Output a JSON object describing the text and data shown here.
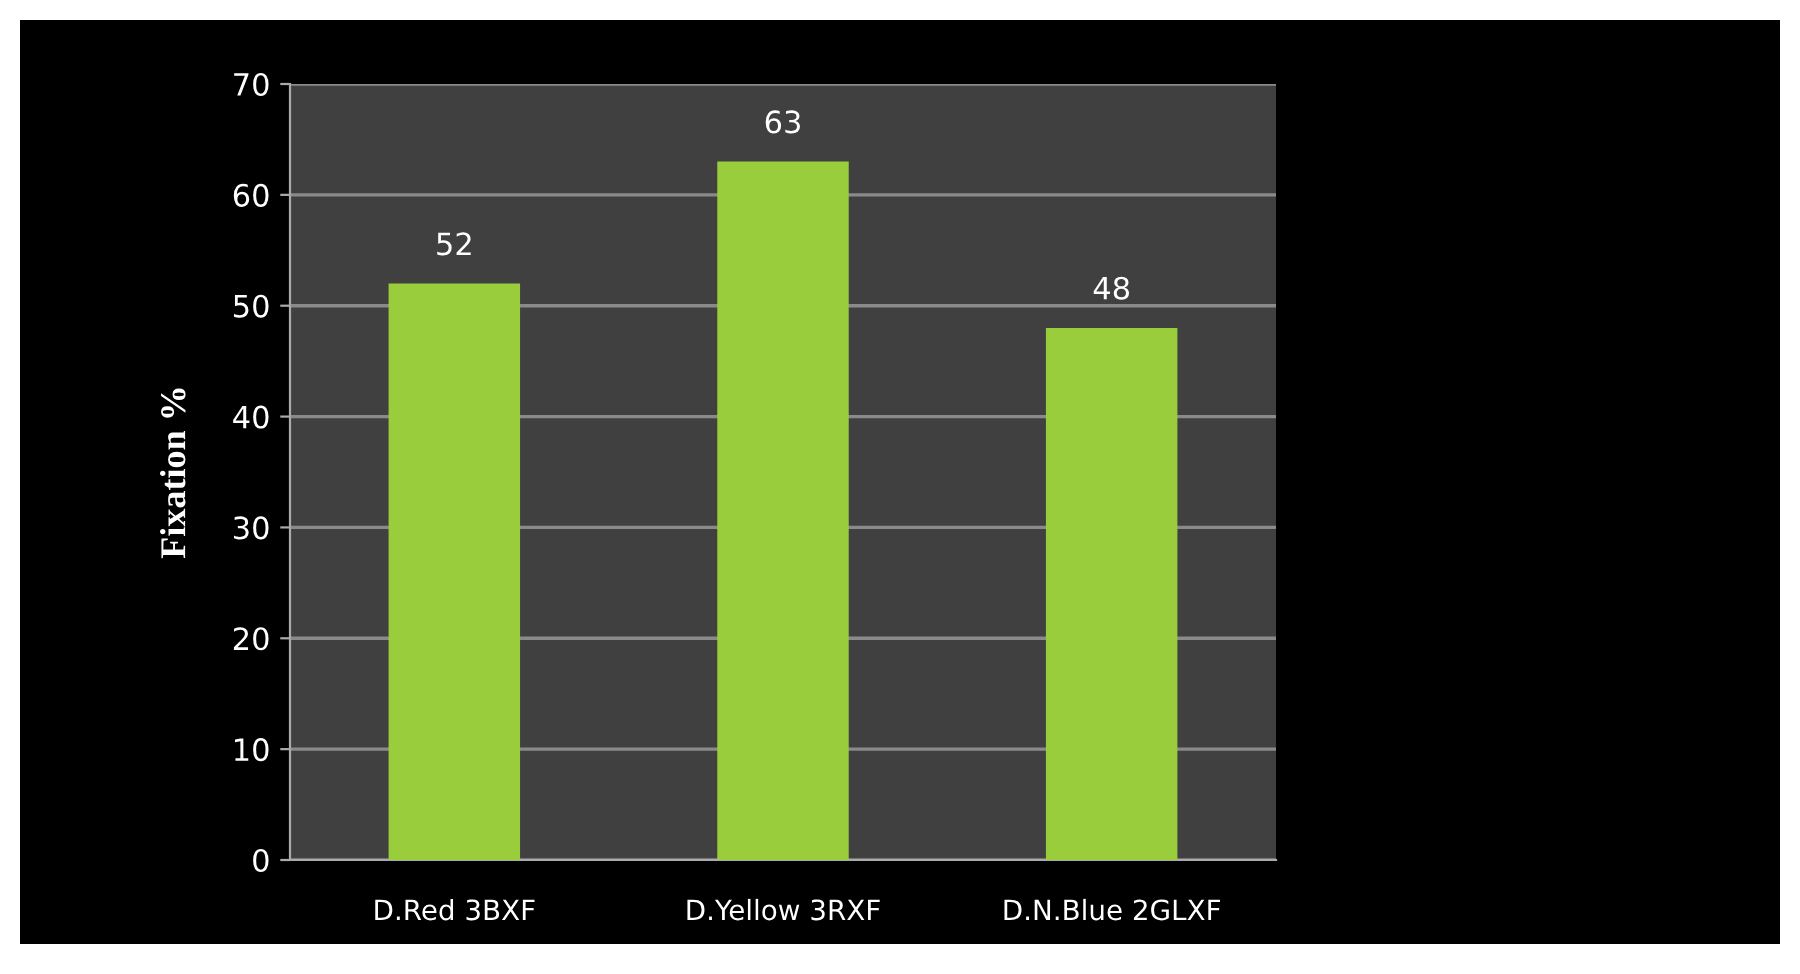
{
  "chart_data": {
    "type": "bar",
    "ylabel": "Fixation %",
    "categories": [
      "D.Red 3BXF",
      "D.Yellow 3RXF",
      "D.N.Blue 2GLXF"
    ],
    "values": [
      52,
      63,
      48
    ],
    "color": "#9acd3c",
    "ylim": [
      0,
      70
    ],
    "yticks": [
      0,
      10,
      20,
      30,
      40,
      50,
      60,
      70
    ],
    "grid": "y",
    "data_labels": true
  }
}
